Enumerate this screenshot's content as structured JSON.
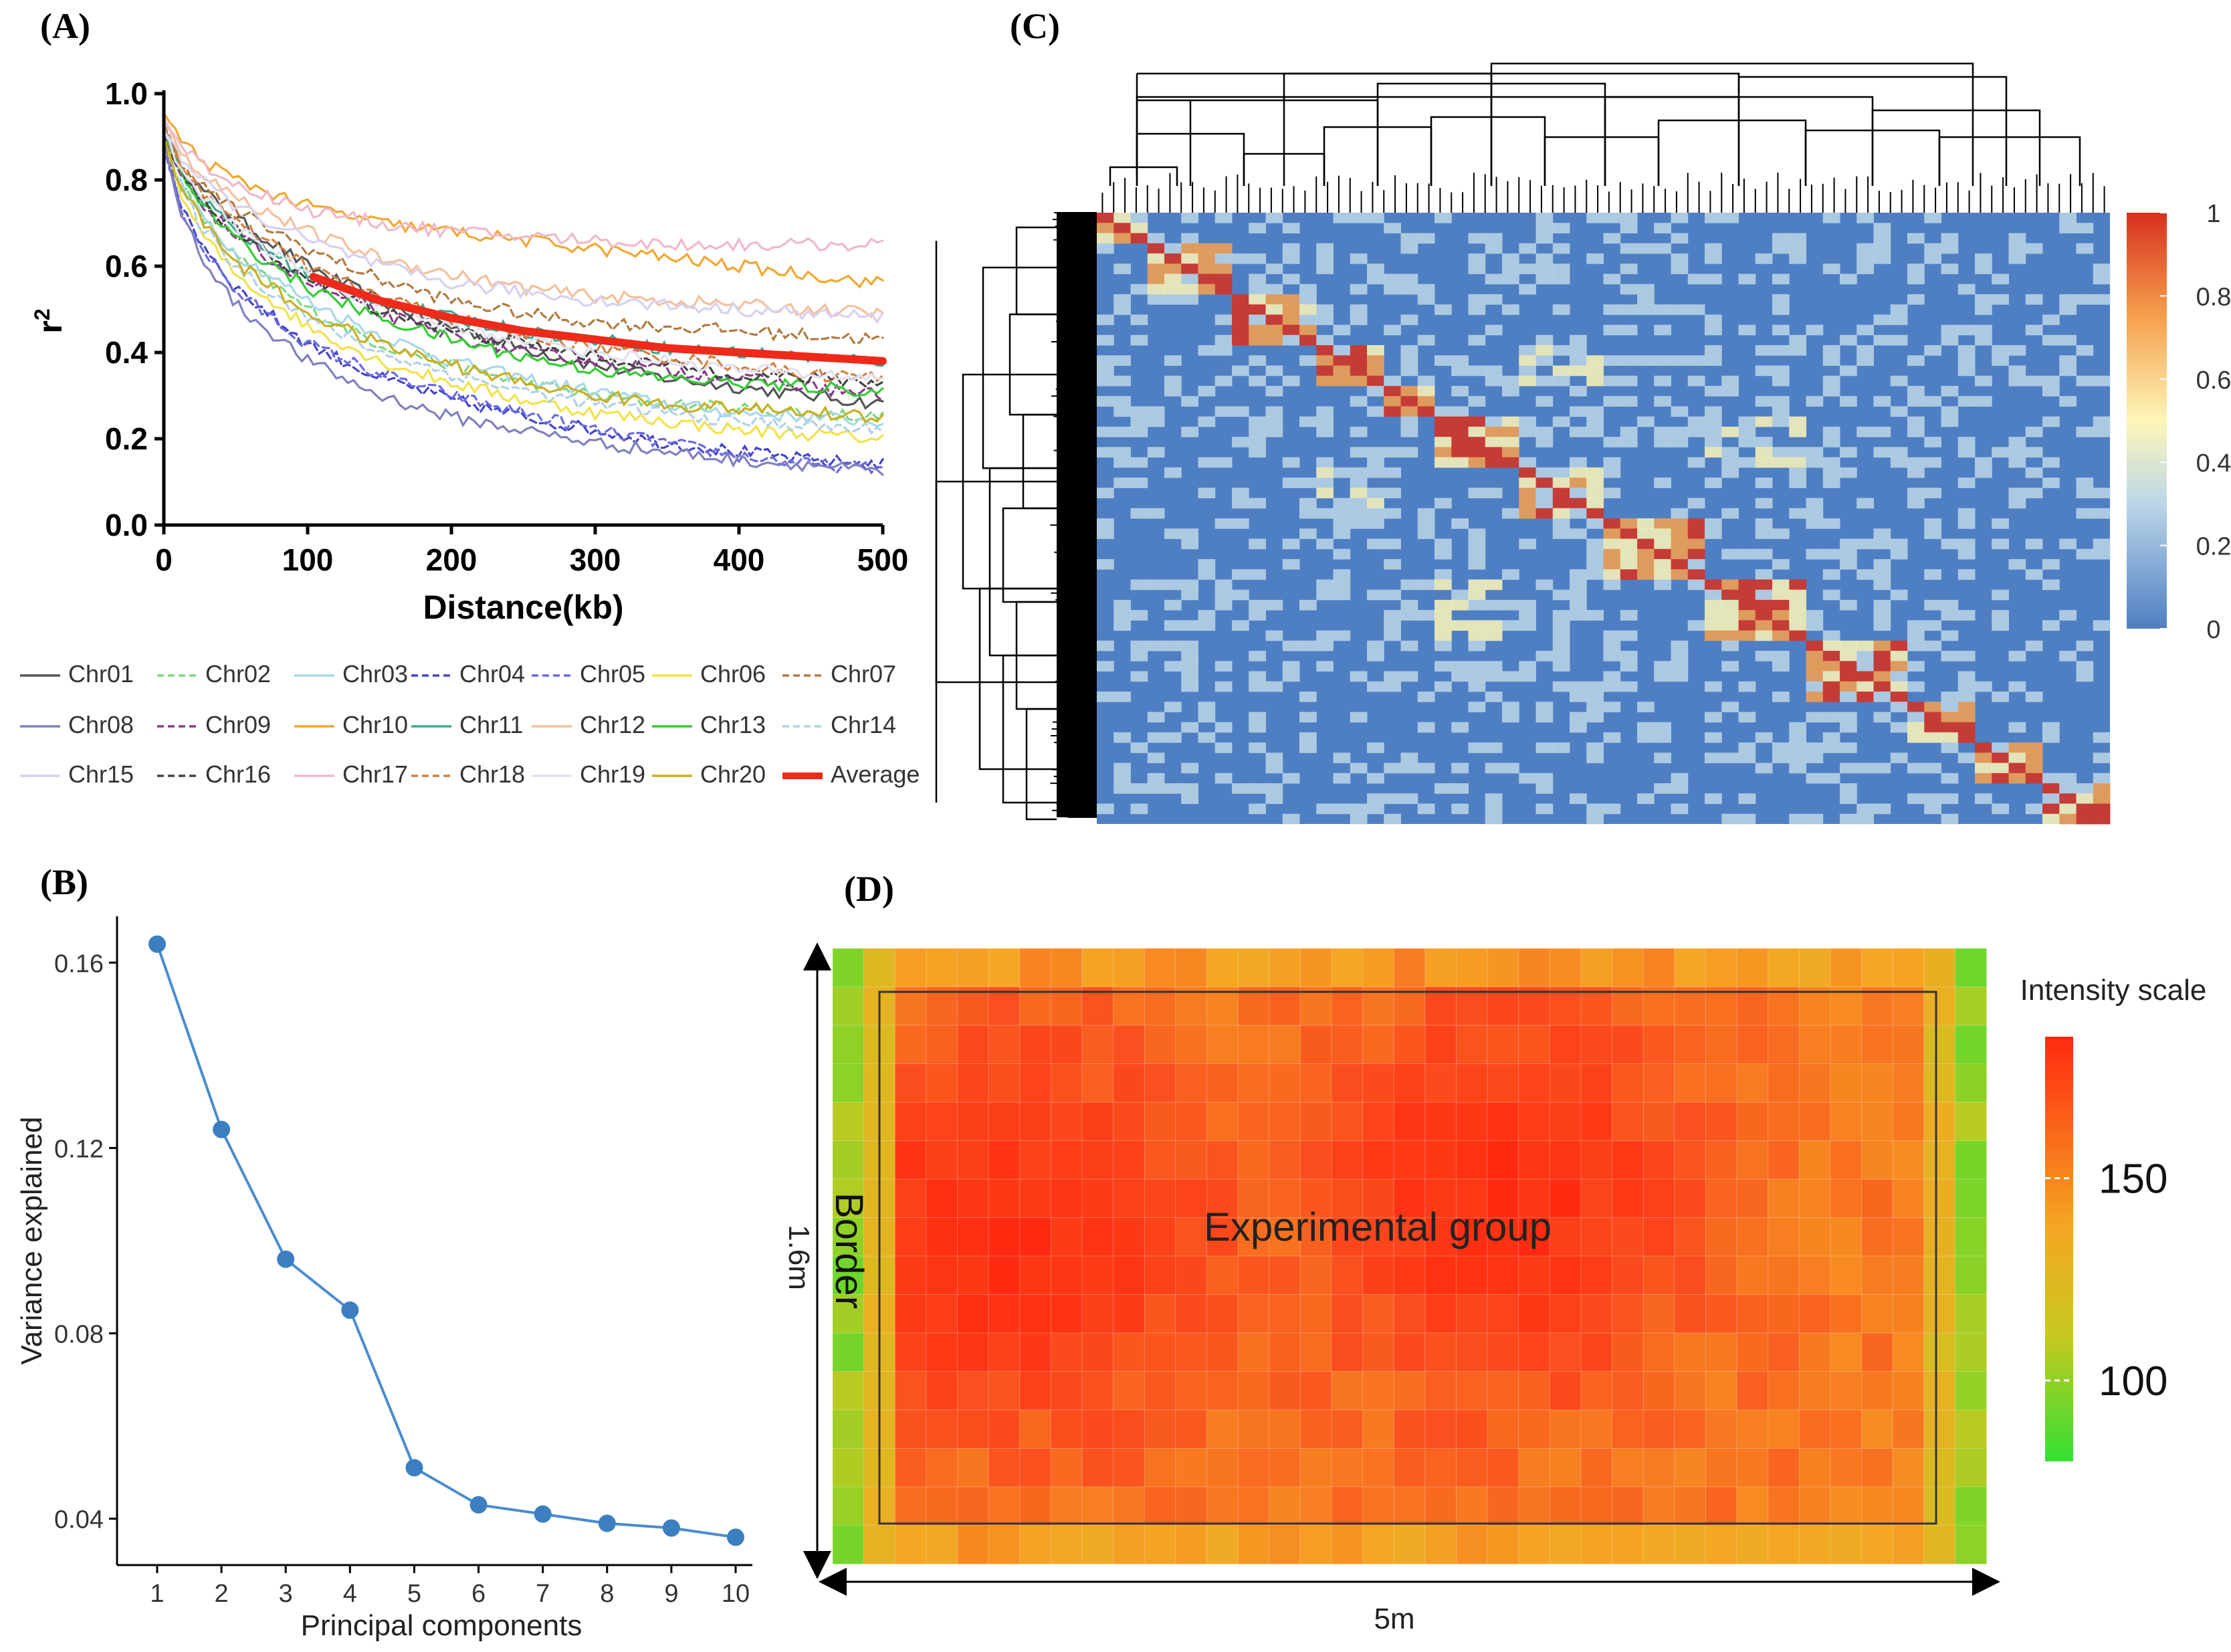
{
  "panels": {
    "a": "(A)",
    "b": "(B)",
    "c": "(C)",
    "d": "(D)"
  },
  "chart_data": [
    {
      "id": "A",
      "type": "line",
      "title": "",
      "xlabel": "Distance(kb)",
      "ylabel": "r2",
      "xlim": [
        0,
        500
      ],
      "ylim": [
        0.0,
        1.0
      ],
      "xticks": [
        "0",
        "100",
        "200",
        "300",
        "400",
        "500"
      ],
      "yticks": [
        "0.0",
        "0.2",
        "0.4",
        "0.6",
        "0.8",
        "1.0"
      ],
      "x": [
        0,
        10,
        25,
        50,
        100,
        150,
        200,
        250,
        300,
        350,
        400,
        450,
        500
      ],
      "series": [
        {
          "name": "Chr01",
          "color": "#555555",
          "dash": "solid",
          "values": [
            0.92,
            0.84,
            0.78,
            0.71,
            0.6,
            0.52,
            0.46,
            0.41,
            0.37,
            0.34,
            0.32,
            0.3,
            0.28
          ]
        },
        {
          "name": "Chr02",
          "color": "#7fd67f",
          "dash": "dashed",
          "values": [
            0.9,
            0.8,
            0.72,
            0.62,
            0.5,
            0.42,
            0.37,
            0.33,
            0.3,
            0.28,
            0.27,
            0.26,
            0.25
          ]
        },
        {
          "name": "Chr03",
          "color": "#a8d8e8",
          "dash": "solid",
          "values": [
            0.9,
            0.8,
            0.72,
            0.63,
            0.52,
            0.44,
            0.38,
            0.34,
            0.31,
            0.28,
            0.26,
            0.25,
            0.24
          ]
        },
        {
          "name": "Chr04",
          "color": "#4444cc",
          "dash": "dashed",
          "values": [
            0.88,
            0.76,
            0.66,
            0.55,
            0.42,
            0.34,
            0.29,
            0.25,
            0.22,
            0.19,
            0.17,
            0.15,
            0.14
          ]
        },
        {
          "name": "Chr05",
          "color": "#6a6ae0",
          "dash": "dashed",
          "values": [
            0.88,
            0.75,
            0.65,
            0.54,
            0.42,
            0.35,
            0.3,
            0.26,
            0.22,
            0.19,
            0.16,
            0.14,
            0.13
          ]
        },
        {
          "name": "Chr06",
          "color": "#f2e24a",
          "dash": "solid",
          "values": [
            0.9,
            0.78,
            0.68,
            0.58,
            0.46,
            0.38,
            0.33,
            0.29,
            0.26,
            0.24,
            0.22,
            0.21,
            0.2
          ]
        },
        {
          "name": "Chr07",
          "color": "#b07a40",
          "dash": "dashed",
          "values": [
            0.92,
            0.85,
            0.79,
            0.73,
            0.64,
            0.57,
            0.52,
            0.49,
            0.47,
            0.46,
            0.45,
            0.44,
            0.43
          ]
        },
        {
          "name": "Chr08",
          "color": "#8080c0",
          "dash": "solid",
          "values": [
            0.88,
            0.74,
            0.63,
            0.51,
            0.38,
            0.3,
            0.25,
            0.22,
            0.19,
            0.17,
            0.15,
            0.14,
            0.12
          ]
        },
        {
          "name": "Chr09",
          "color": "#8a3a8a",
          "dash": "dashed",
          "values": [
            0.91,
            0.82,
            0.75,
            0.67,
            0.56,
            0.49,
            0.44,
            0.4,
            0.38,
            0.36,
            0.34,
            0.32,
            0.3
          ]
        },
        {
          "name": "Chr10",
          "color": "#f0a830",
          "dash": "solid",
          "values": [
            0.95,
            0.9,
            0.85,
            0.8,
            0.74,
            0.7,
            0.68,
            0.66,
            0.64,
            0.62,
            0.6,
            0.58,
            0.56
          ]
        },
        {
          "name": "Chr11",
          "color": "#40a890",
          "dash": "solid",
          "values": [
            0.91,
            0.83,
            0.76,
            0.68,
            0.58,
            0.52,
            0.48,
            0.45,
            0.43,
            0.41,
            0.4,
            0.39,
            0.38
          ]
        },
        {
          "name": "Chr12",
          "color": "#f4c09a",
          "dash": "solid",
          "values": [
            0.93,
            0.87,
            0.82,
            0.76,
            0.68,
            0.62,
            0.58,
            0.55,
            0.53,
            0.52,
            0.51,
            0.5,
            0.49
          ]
        },
        {
          "name": "Chr13",
          "color": "#33cc33",
          "dash": "solid",
          "values": [
            0.91,
            0.82,
            0.75,
            0.66,
            0.55,
            0.48,
            0.43,
            0.39,
            0.36,
            0.34,
            0.33,
            0.32,
            0.31
          ]
        },
        {
          "name": "Chr14",
          "color": "#b0d0e8",
          "dash": "dashed",
          "values": [
            0.9,
            0.79,
            0.7,
            0.6,
            0.48,
            0.4,
            0.35,
            0.31,
            0.28,
            0.26,
            0.24,
            0.23,
            0.22
          ]
        },
        {
          "name": "Chr15",
          "color": "#d8d0f0",
          "dash": "solid",
          "values": [
            0.93,
            0.86,
            0.8,
            0.74,
            0.66,
            0.6,
            0.56,
            0.54,
            0.52,
            0.51,
            0.5,
            0.49,
            0.48
          ]
        },
        {
          "name": "Chr16",
          "color": "#444444",
          "dash": "dashed",
          "values": [
            0.91,
            0.83,
            0.76,
            0.68,
            0.57,
            0.5,
            0.45,
            0.42,
            0.39,
            0.37,
            0.35,
            0.34,
            0.33
          ]
        },
        {
          "name": "Chr17",
          "color": "#f0b8c8",
          "dash": "solid",
          "values": [
            0.94,
            0.89,
            0.84,
            0.79,
            0.73,
            0.7,
            0.68,
            0.67,
            0.66,
            0.65,
            0.65,
            0.65,
            0.65
          ]
        },
        {
          "name": "Chr18",
          "color": "#d08040",
          "dash": "dashed",
          "values": [
            0.92,
            0.85,
            0.78,
            0.7,
            0.6,
            0.53,
            0.48,
            0.44,
            0.41,
            0.39,
            0.37,
            0.35,
            0.34
          ]
        },
        {
          "name": "Chr19",
          "color": "#e0e0f0",
          "dash": "solid",
          "values": [
            0.92,
            0.84,
            0.77,
            0.69,
            0.58,
            0.51,
            0.46,
            0.43,
            0.4,
            0.38,
            0.36,
            0.35,
            0.34
          ]
        },
        {
          "name": "Chr20",
          "color": "#c8b020",
          "dash": "solid",
          "values": [
            0.9,
            0.8,
            0.71,
            0.61,
            0.49,
            0.42,
            0.37,
            0.33,
            0.3,
            0.28,
            0.27,
            0.26,
            0.25
          ]
        },
        {
          "name": "Average",
          "color": "#ee2a1a",
          "dash": "solid",
          "values": [
            null,
            null,
            null,
            null,
            0.58,
            0.52,
            0.48,
            0.45,
            0.43,
            0.41,
            0.4,
            0.39,
            0.38
          ]
        }
      ]
    },
    {
      "id": "B",
      "type": "line",
      "title": "",
      "xlabel": "Principal components",
      "ylabel": "Variance explained",
      "x": [
        1,
        2,
        3,
        4,
        5,
        6,
        7,
        8,
        9,
        10
      ],
      "values": [
        0.164,
        0.124,
        0.096,
        0.085,
        0.051,
        0.043,
        0.041,
        0.039,
        0.038,
        0.036
      ],
      "ylim": [
        0.03,
        0.17
      ],
      "yticks": [
        "0.04",
        "0.08",
        "0.12",
        "0.16"
      ],
      "xticks": [
        "1",
        "2",
        "3",
        "4",
        "5",
        "6",
        "7",
        "8",
        "9",
        "10"
      ],
      "color": "#4a8ccf"
    },
    {
      "id": "C",
      "type": "heatmap",
      "title": "",
      "colorbar_ticks": [
        "1",
        "0.8",
        "0.6",
        "0.4",
        "0.2",
        "0"
      ],
      "range": [
        0,
        1
      ],
      "colors": {
        "low": "#4f7fc3",
        "mid": "#fdf6b8",
        "high": "#d7301f"
      }
    },
    {
      "id": "D",
      "type": "heatmap",
      "title": "",
      "legend_title": "Intensity scale",
      "colorbar_ticks": [
        "150",
        "100"
      ],
      "range": [
        80,
        185
      ],
      "center_label": "Experimental group",
      "border_label": "Border",
      "height_label": "1.6m",
      "width_label": "5m",
      "colors": {
        "low": "#33e033",
        "mid": "#f5a623",
        "high": "#ff2a10"
      }
    }
  ]
}
